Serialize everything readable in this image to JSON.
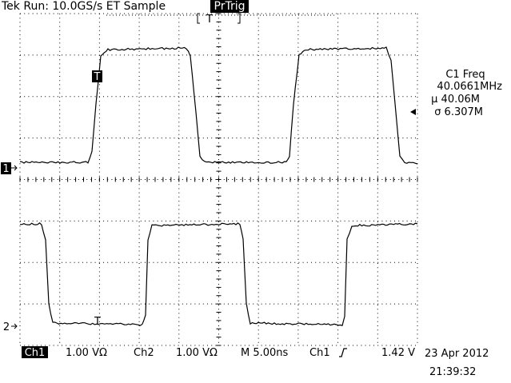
{
  "header": {
    "status": "Tek Run: 10.0GS/s ET Sample",
    "trigger_state": "PrTrig",
    "trigger_position": "T"
  },
  "measurement": {
    "label": "C1 Freq",
    "value": "40.0661MHz",
    "mean": "μ 40.06M",
    "std_dev": "σ 6.307M"
  },
  "channels": [
    {
      "marker": "1",
      "trigger_marker": "T"
    },
    {
      "marker": "2",
      "trigger_marker": "T"
    }
  ],
  "footer": {
    "ch1_label": "Ch1",
    "ch1_scale": "1.00 VΩ",
    "ch2_label": "Ch2",
    "ch2_scale": "1.00 VΩ",
    "timebase": "M 5.00ns",
    "trigger_source": "Ch1",
    "trigger_level": "1.42 V",
    "date": "23 Apr 2012",
    "time": "21:39:32"
  }
}
